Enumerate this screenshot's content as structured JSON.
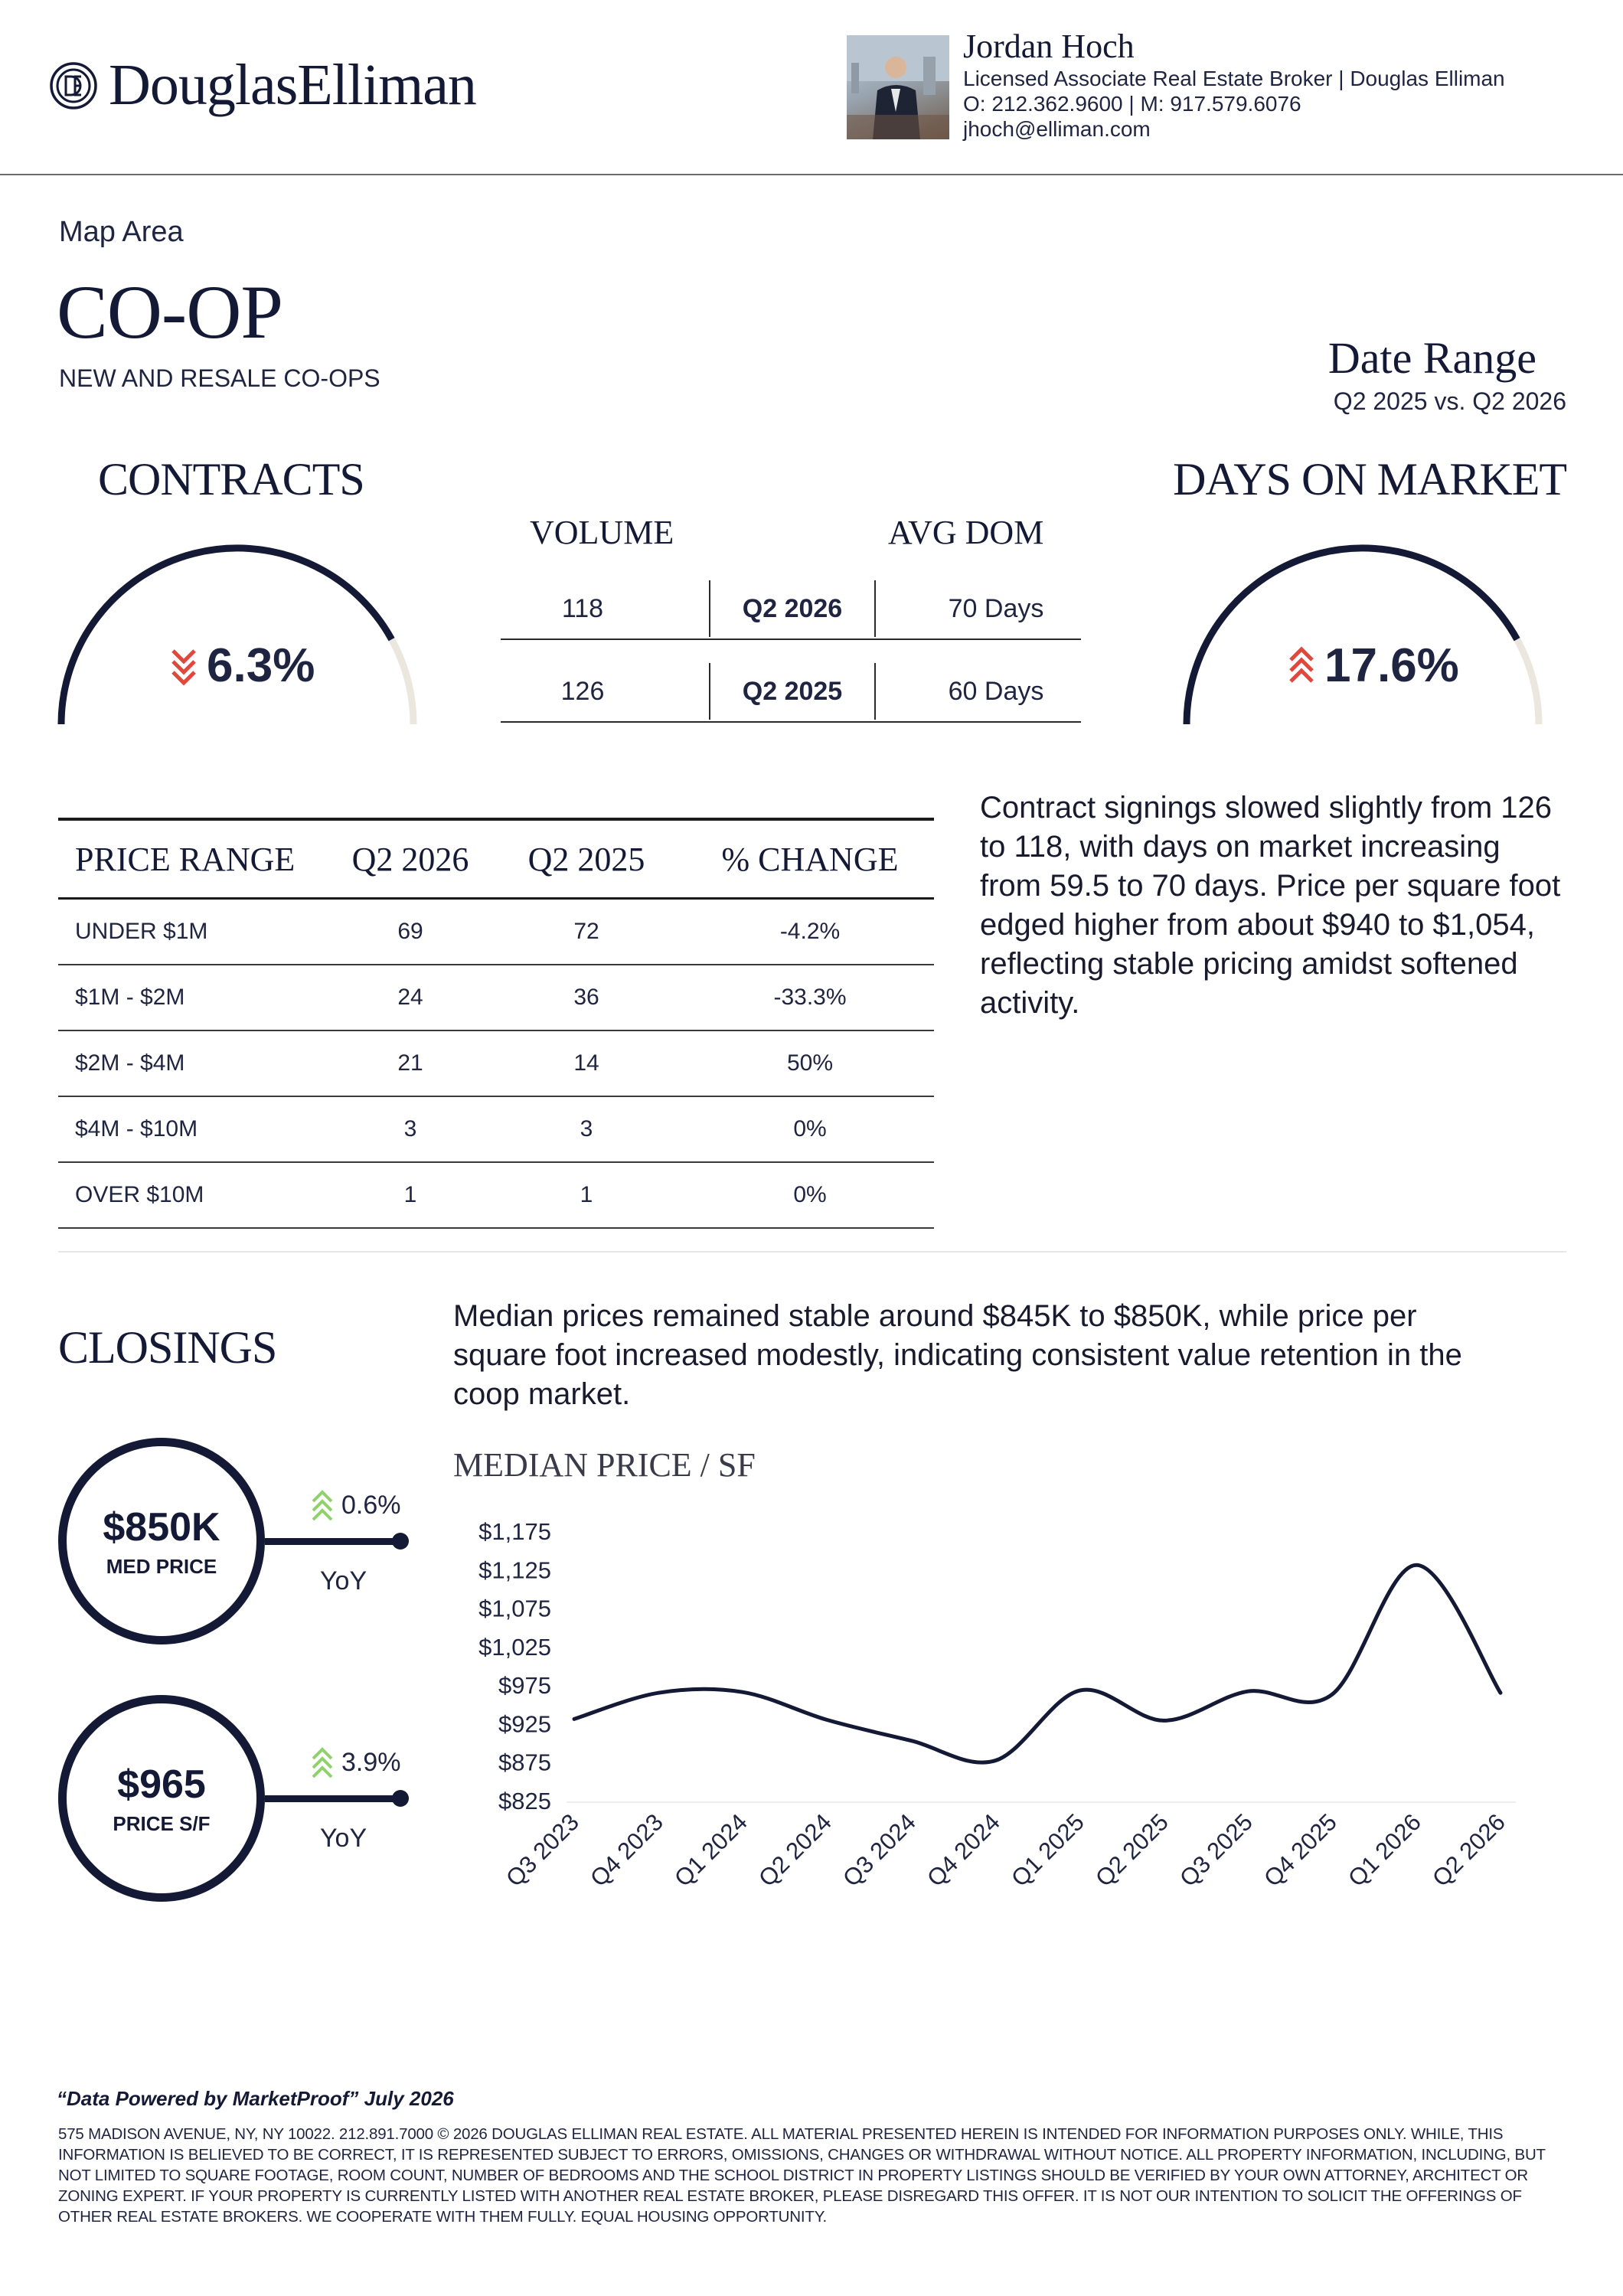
{
  "header": {
    "logo_text": "DouglasElliman",
    "agent": {
      "name": "Jordan Hoch",
      "title": "Licensed Associate Real Estate Broker | Douglas Elliman",
      "phones": "O: 212.362.9600 | M: 917.579.6076",
      "email": "jhoch@elliman.com"
    }
  },
  "report": {
    "area_label": "Map Area",
    "title": "CO-OP",
    "subtitle": "NEW AND RESALE CO-OPS",
    "date_range_title": "Date Range",
    "date_range_value": "Q2 2025 vs. Q2 2026"
  },
  "contracts": {
    "title": "CONTRACTS",
    "change": "6.3%",
    "direction": "down",
    "gauge_fill_fraction": 0.84
  },
  "days_on_market": {
    "title": "DAYS ON MARKET",
    "change": "17.6%",
    "direction": "up",
    "gauge_fill_fraction": 0.84
  },
  "volume_table": {
    "volume_header": "VOLUME",
    "dom_header": "AVG DOM",
    "rows": [
      {
        "volume": "118",
        "period": "Q2 2026",
        "dom": "70 Days"
      },
      {
        "volume": "126",
        "period": "Q2 2025",
        "dom": "60 Days"
      }
    ]
  },
  "price_range_table": {
    "headers": [
      "PRICE RANGE",
      "Q2 2026",
      "Q2 2025",
      "% CHANGE"
    ],
    "rows": [
      [
        "UNDER $1M",
        "69",
        "72",
        "-4.2%"
      ],
      [
        "$1M - $2M",
        "24",
        "36",
        "-33.3%"
      ],
      [
        "$2M - $4M",
        "21",
        "14",
        "50%"
      ],
      [
        "$4M - $10M",
        "3",
        "3",
        "0%"
      ],
      [
        "OVER $10M",
        "1",
        "1",
        "0%"
      ]
    ]
  },
  "contracts_commentary": "Contract signings slowed slightly from 126 to 118, with days on market increasing from 59.5 to 70 days. Price per square foot edged higher from about $940 to $1,054, reflecting stable pricing amidst softened activity.",
  "closings": {
    "title": "CLOSINGS",
    "commentary": "Median prices remained stable around $845K to $850K, while price per square foot increased modestly, indicating consistent value retention in the coop market.",
    "metrics": [
      {
        "value": "$850K",
        "label": "MED PRICE",
        "change": "0.6%",
        "direction": "up",
        "period": "YoY"
      },
      {
        "value": "$965",
        "label": "PRICE S/F",
        "change": "3.9%",
        "direction": "up",
        "period": "YoY"
      }
    ]
  },
  "chart_data": {
    "type": "line",
    "title": "MEDIAN PRICE / SF",
    "categories": [
      "Q3 2023",
      "Q4 2023",
      "Q1 2024",
      "Q2 2024",
      "Q3 2024",
      "Q4 2024",
      "Q1 2025",
      "Q2 2025",
      "Q3 2025",
      "Q4 2025",
      "Q1 2026",
      "Q2 2026"
    ],
    "values": [
      931,
      965,
      966,
      930,
      903,
      877,
      968,
      929,
      967,
      963,
      1131,
      965
    ],
    "y_ticks": [
      "$825",
      "$875",
      "$925",
      "$975",
      "$1,025",
      "$1,075",
      "$1,125",
      "$1,175"
    ],
    "ylim": [
      825,
      1175
    ],
    "line_color": "#141a36",
    "grid": false
  },
  "footer": {
    "source": "“Data Powered by MarketProof” July 2026",
    "disclaimer": "575 Madison Avenue, NY, NY 10022. 212.891.7000 © 2026 Douglas Elliman Real Estate. All material presented herein is intended for information purposes only. While, this information is believed to be correct, it is represented subject to errors, omissions, changes or withdrawal without notice. All property information, including, but not limited to square footage, room count, number of bedrooms and the school district in property listings should be verified by your own attorney, architect or zoning expert. If your property is currently listed with another real estate broker, please disregard this offer. It is not our intention to solicit the offerings of other real estate brokers. We cooperate with them fully. Equal Housing Opportunity."
  },
  "colors": {
    "navy": "#141a36",
    "down_red": "#e0483c",
    "up_green": "#8fd16a",
    "gauge_track": "#ebe6de"
  }
}
